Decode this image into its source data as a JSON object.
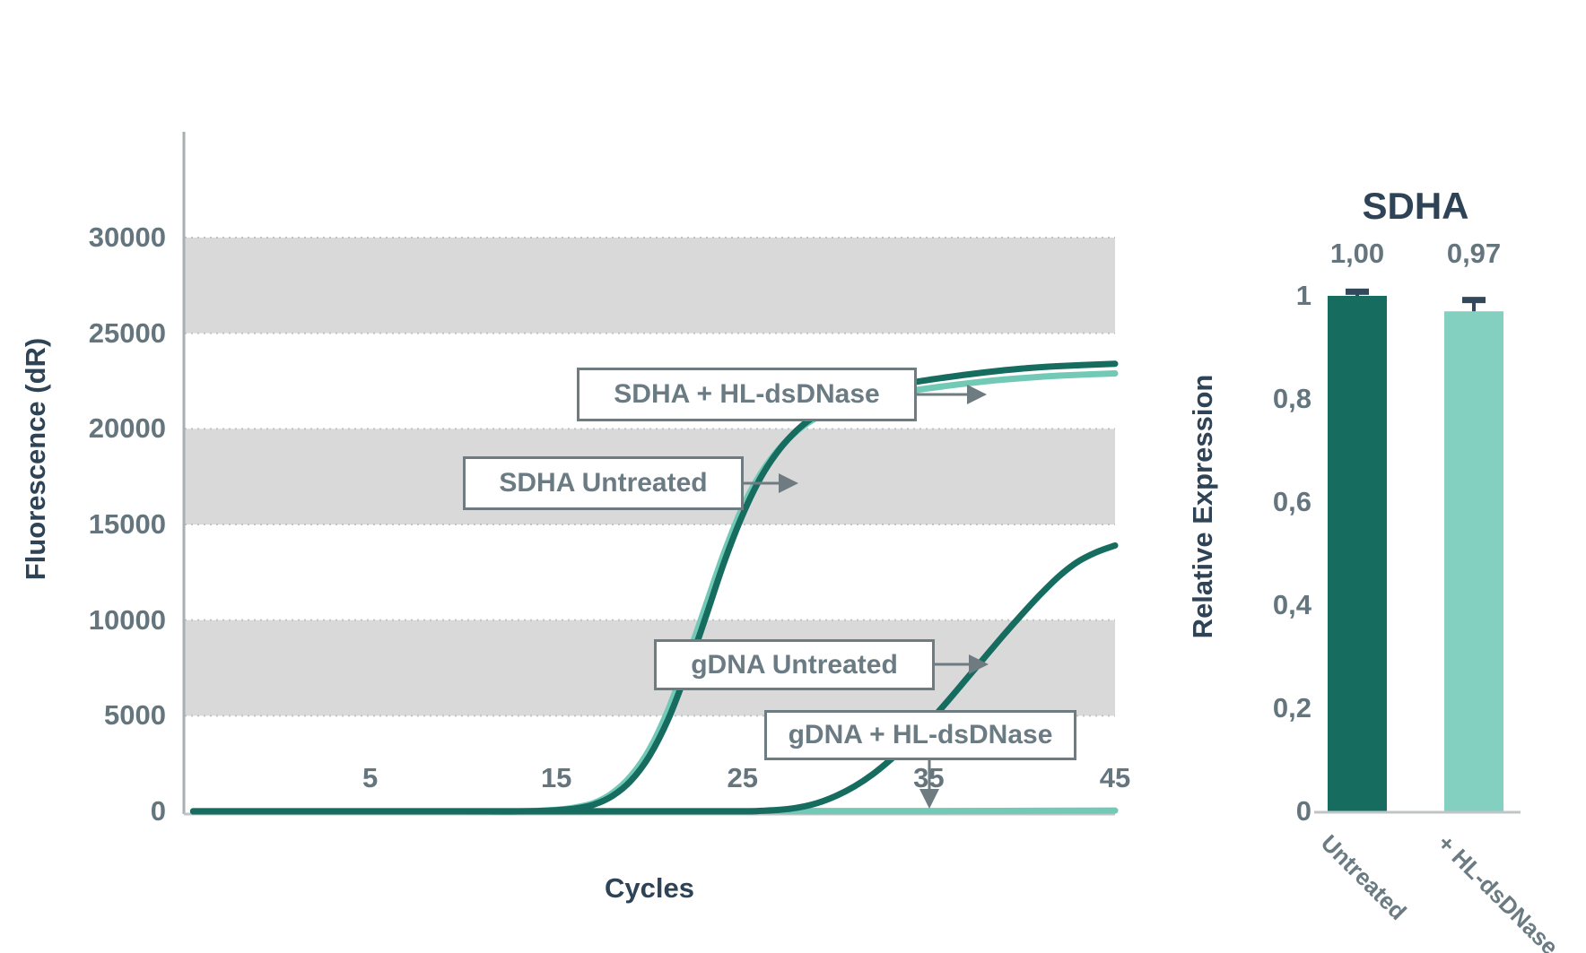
{
  "colors": {
    "dark_teal": "#156C5F",
    "light_teal": "#72C9B6",
    "bar_light_teal": "#83CFC0",
    "band_gray": "#D9D9D9",
    "grid_dot_gray": "#BFC4C6",
    "axis_gray": "#A9AEB0",
    "baseline_gray": "#C0C4C6",
    "tick_text_gray": "#64757E",
    "callout_text_gray": "#6B7B83",
    "callout_border_gray": "#6E7B81",
    "navy_text": "#2E4356",
    "error_bar_navy": "#32495C"
  },
  "chart_data": [
    {
      "type": "line",
      "title": "",
      "xlabel": "Cycles",
      "ylabel": "Fluorescence (dR)",
      "xlim": [
        -5,
        45
      ],
      "ylim": [
        0,
        35000
      ],
      "xticks": [
        {
          "value": 5,
          "label": "5"
        },
        {
          "value": 15,
          "label": "15"
        },
        {
          "value": 25,
          "label": "25"
        },
        {
          "value": 35,
          "label": "35"
        },
        {
          "value": 45,
          "label": "45"
        }
      ],
      "yticks": [
        {
          "value": 0,
          "label": "0"
        },
        {
          "value": 5000,
          "label": "5000"
        },
        {
          "value": 10000,
          "label": "10000"
        },
        {
          "value": 15000,
          "label": "15000"
        },
        {
          "value": 20000,
          "label": "20000"
        },
        {
          "value": 25000,
          "label": "25000"
        },
        {
          "value": 30000,
          "label": "30000"
        }
      ],
      "gridlines": [
        5000,
        10000,
        15000,
        20000,
        25000,
        30000
      ],
      "shaded_bands": [
        [
          5000,
          10000
        ],
        [
          15000,
          20000
        ],
        [
          25000,
          30000
        ]
      ],
      "series": [
        {
          "id": "gdna_hl",
          "name": "gDNA + HL-dsDNase",
          "color_key": "light_teal",
          "points": [
            [
              -4.5,
              20
            ],
            [
              5,
              20
            ],
            [
              15,
              20
            ],
            [
              25,
              20
            ],
            [
              35,
              20
            ],
            [
              45,
              40
            ]
          ]
        },
        {
          "id": "sdha_untreated",
          "name": "SDHA Untreated",
          "color_key": "light_teal",
          "points": [
            [
              -4.5,
              0
            ],
            [
              5,
              0
            ],
            [
              10,
              0
            ],
            [
              13,
              0
            ],
            [
              15,
              80
            ],
            [
              16,
              200
            ],
            [
              17,
              430
            ],
            [
              18,
              950
            ],
            [
              19,
              1850
            ],
            [
              20,
              3250
            ],
            [
              21,
              5300
            ],
            [
              22,
              7900
            ],
            [
              23,
              10700
            ],
            [
              24,
              13500
            ],
            [
              25,
              15900
            ],
            [
              26,
              17700
            ],
            [
              27,
              19000
            ],
            [
              28,
              19950
            ],
            [
              29,
              20600
            ],
            [
              30,
              21050
            ],
            [
              32,
              21600
            ],
            [
              34,
              21980
            ],
            [
              36,
              22250
            ],
            [
              38,
              22480
            ],
            [
              40,
              22650
            ],
            [
              42,
              22780
            ],
            [
              45,
              22900
            ]
          ]
        },
        {
          "id": "sdha_hl",
          "name": "SDHA + HL-dsDNase",
          "color_key": "dark_teal",
          "points": [
            [
              -4.5,
              0
            ],
            [
              5,
              0
            ],
            [
              10,
              0
            ],
            [
              13,
              0
            ],
            [
              15,
              60
            ],
            [
              16,
              150
            ],
            [
              17,
              350
            ],
            [
              18,
              800
            ],
            [
              19,
              1600
            ],
            [
              20,
              2900
            ],
            [
              21,
              4800
            ],
            [
              22,
              7300
            ],
            [
              23,
              10100
            ],
            [
              24,
              13000
            ],
            [
              25,
              15500
            ],
            [
              26,
              17500
            ],
            [
              27,
              18950
            ],
            [
              28,
              20000
            ],
            [
              29,
              20750
            ],
            [
              30,
              21300
            ],
            [
              32,
              21950
            ],
            [
              34,
              22400
            ],
            [
              36,
              22700
            ],
            [
              38,
              22950
            ],
            [
              40,
              23150
            ],
            [
              42,
              23280
            ],
            [
              45,
              23400
            ]
          ]
        },
        {
          "id": "gdna_untreated",
          "name": "gDNA Untreated",
          "color_key": "dark_teal",
          "points": [
            [
              -4.5,
              0
            ],
            [
              10,
              0
            ],
            [
              20,
              0
            ],
            [
              25,
              0
            ],
            [
              26,
              30
            ],
            [
              27,
              80
            ],
            [
              28,
              200
            ],
            [
              29,
              430
            ],
            [
              30,
              800
            ],
            [
              31,
              1300
            ],
            [
              32,
              1950
            ],
            [
              33,
              2750
            ],
            [
              34,
              3650
            ],
            [
              35,
              4650
            ],
            [
              36,
              5750
            ],
            [
              37,
              6900
            ],
            [
              38,
              8050
            ],
            [
              39,
              9200
            ],
            [
              40,
              10300
            ],
            [
              41,
              11350
            ],
            [
              42,
              12300
            ],
            [
              43,
              13050
            ],
            [
              44,
              13550
            ],
            [
              45,
              13900
            ]
          ]
        }
      ],
      "annotations": [
        {
          "id": "a_sdha_hl",
          "label": "SDHA + HL-dsDNase"
        },
        {
          "id": "a_sdha_untreated",
          "label": "SDHA Untreated"
        },
        {
          "id": "a_gdna_untreated",
          "label": "gDNA Untreated"
        },
        {
          "id": "a_gdna_hl",
          "label": "gDNA + HL-dsDNase"
        }
      ]
    },
    {
      "type": "bar",
      "title": "SDHA",
      "ylabel": "Relative Expression",
      "ylim": [
        0,
        1
      ],
      "yticks": [
        {
          "value": 1,
          "label": "1"
        },
        {
          "value": 0.8,
          "label": "0,8"
        },
        {
          "value": 0.6,
          "label": "0,6"
        },
        {
          "value": 0.4,
          "label": "0,4"
        },
        {
          "value": 0.2,
          "label": "0,2"
        },
        {
          "value": 0,
          "label": "0"
        }
      ],
      "bars": [
        {
          "category": "Untreated",
          "value": 1.0,
          "value_label": "1,00",
          "error": 0.008,
          "color_key": "dark_teal"
        },
        {
          "category": "+ HL-dsDNase",
          "value": 0.97,
          "value_label": "0,97",
          "error": 0.022,
          "color_key": "bar_light_teal"
        }
      ]
    }
  ]
}
